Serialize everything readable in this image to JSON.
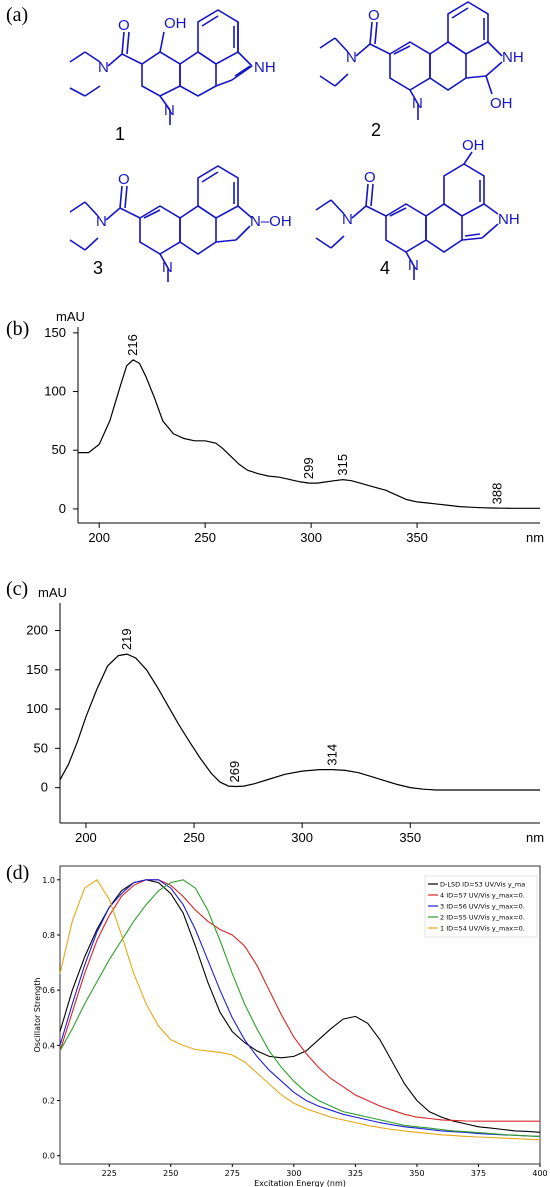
{
  "panels": {
    "a": "(a)",
    "b": "(b)",
    "c": "(c)",
    "d": "(d)"
  },
  "molecules": {
    "labels": [
      "1",
      "2",
      "3",
      "4"
    ],
    "atoms": {
      "oh": "OH",
      "nh": "NH",
      "n": "N",
      "noh": "N–OH",
      "o": "O"
    }
  },
  "chart_data": [
    {
      "panel": "(b)",
      "type": "line",
      "ylabel": "mAU",
      "xlabel": "nm",
      "xlim": [
        190,
        408
      ],
      "ylim": [
        -12,
        155
      ],
      "xticks": [
        200,
        250,
        300,
        350
      ],
      "yticks": [
        0,
        50,
        100,
        150
      ],
      "x": [
        190,
        195,
        200,
        205,
        210,
        213,
        216,
        219,
        222,
        226,
        230,
        235,
        240,
        245,
        250,
        255,
        258,
        262,
        266,
        270,
        275,
        280,
        285,
        290,
        295,
        299,
        303,
        307,
        311,
        315,
        319,
        323,
        327,
        331,
        335,
        340,
        345,
        350,
        355,
        360,
        365,
        370,
        375,
        380,
        385,
        390,
        395,
        400,
        405,
        408
      ],
      "y": [
        48,
        48,
        55,
        75,
        105,
        122,
        127,
        124,
        113,
        95,
        75,
        64,
        60,
        58,
        58,
        56,
        52,
        45,
        38,
        33,
        30,
        28,
        27,
        25,
        23,
        22,
        22,
        23,
        24,
        25,
        24,
        22,
        20,
        18,
        16,
        12,
        8,
        6,
        5,
        4,
        3,
        2,
        1.5,
        1,
        0.8,
        0.6,
        0.5,
        0.5,
        0.5,
        0.5
      ],
      "peak_labels": [
        {
          "x": 216,
          "y": 127,
          "text": "216"
        },
        {
          "x": 299,
          "y": 22,
          "text": "299"
        },
        {
          "x": 315,
          "y": 25,
          "text": "315"
        },
        {
          "x": 388,
          "y": 0.5,
          "text": "388"
        }
      ]
    },
    {
      "panel": "(c)",
      "type": "line",
      "ylabel": "mAU",
      "xlabel": "nm",
      "xlim": [
        188,
        410
      ],
      "ylim": [
        -45,
        235
      ],
      "xticks": [
        200,
        250,
        300,
        350
      ],
      "yticks": [
        0,
        50,
        100,
        150,
        200
      ],
      "x": [
        188,
        192,
        196,
        200,
        205,
        210,
        215,
        219,
        223,
        228,
        233,
        238,
        243,
        248,
        253,
        258,
        262,
        266,
        269,
        273,
        278,
        285,
        292,
        300,
        308,
        314,
        320,
        326,
        332,
        338,
        344,
        350,
        356,
        362,
        370,
        380,
        390,
        400,
        410
      ],
      "y": [
        10,
        30,
        58,
        90,
        125,
        155,
        168,
        170,
        165,
        150,
        128,
        104,
        80,
        58,
        37,
        18,
        7,
        2,
        1.5,
        2,
        5,
        11,
        17,
        21,
        23,
        23,
        22,
        19,
        14,
        9,
        4,
        0,
        -2,
        -3,
        -3,
        -3,
        -3,
        -3,
        -3
      ],
      "peak_labels": [
        {
          "x": 219,
          "y": 170,
          "text": "219"
        },
        {
          "x": 269,
          "y": 1.5,
          "text": "269"
        },
        {
          "x": 314,
          "y": 23,
          "text": "314"
        }
      ]
    },
    {
      "panel": "(d)",
      "type": "line",
      "xlabel": "Excitation Energy (nm)",
      "ylabel": "Oscillator Strength",
      "xlim": [
        205,
        400
      ],
      "ylim": [
        -0.03,
        1.05
      ],
      "xticks": [
        225,
        250,
        275,
        300,
        325,
        350,
        375,
        400
      ],
      "yticks": [
        0.0,
        0.2,
        0.4,
        0.6,
        0.8,
        1.0
      ],
      "legend_position": "top-right",
      "x": [
        205,
        210,
        215,
        220,
        225,
        230,
        235,
        240,
        245,
        250,
        255,
        260,
        265,
        270,
        275,
        280,
        285,
        290,
        295,
        300,
        305,
        310,
        315,
        320,
        325,
        330,
        335,
        340,
        345,
        350,
        355,
        360,
        365,
        370,
        375,
        380,
        385,
        390,
        395,
        400
      ],
      "series": [
        {
          "name": "D-LSD ID=53 UV/Vis y_ma",
          "color": "#000000",
          "values": [
            0.45,
            0.6,
            0.72,
            0.82,
            0.9,
            0.96,
            0.99,
            1.0,
            0.99,
            0.95,
            0.88,
            0.76,
            0.63,
            0.52,
            0.45,
            0.41,
            0.38,
            0.36,
            0.355,
            0.36,
            0.38,
            0.42,
            0.46,
            0.495,
            0.505,
            0.48,
            0.42,
            0.34,
            0.26,
            0.2,
            0.16,
            0.14,
            0.125,
            0.115,
            0.105,
            0.1,
            0.095,
            0.09,
            0.088,
            0.085
          ]
        },
        {
          "name": "4 ID=57 UV/Vis y_max=0.",
          "color": "#d62728",
          "values": [
            0.38,
            0.52,
            0.66,
            0.78,
            0.87,
            0.94,
            0.98,
            1.0,
            1.0,
            0.98,
            0.94,
            0.89,
            0.85,
            0.82,
            0.8,
            0.76,
            0.69,
            0.6,
            0.51,
            0.43,
            0.37,
            0.32,
            0.28,
            0.25,
            0.22,
            0.2,
            0.18,
            0.165,
            0.15,
            0.14,
            0.135,
            0.13,
            0.128,
            0.126,
            0.125,
            0.125,
            0.125,
            0.125,
            0.125,
            0.125
          ]
        },
        {
          "name": "3 ID=56 UV/Vis y_max=0.",
          "color": "#1f1fd6",
          "values": [
            0.4,
            0.55,
            0.69,
            0.81,
            0.9,
            0.95,
            0.99,
            1.0,
            1.0,
            0.97,
            0.91,
            0.82,
            0.71,
            0.6,
            0.5,
            0.42,
            0.36,
            0.31,
            0.27,
            0.23,
            0.2,
            0.18,
            0.165,
            0.15,
            0.14,
            0.13,
            0.12,
            0.112,
            0.105,
            0.1,
            0.095,
            0.09,
            0.087,
            0.084,
            0.08,
            0.078,
            0.076,
            0.074,
            0.072,
            0.07
          ]
        },
        {
          "name": "2 ID=55 UV/Vis y_max=0.",
          "color": "#2ca02c",
          "values": [
            0.38,
            0.46,
            0.55,
            0.63,
            0.71,
            0.78,
            0.85,
            0.91,
            0.96,
            0.99,
            1.0,
            0.97,
            0.89,
            0.78,
            0.66,
            0.55,
            0.46,
            0.38,
            0.32,
            0.27,
            0.23,
            0.2,
            0.18,
            0.16,
            0.15,
            0.14,
            0.13,
            0.12,
            0.11,
            0.105,
            0.1,
            0.095,
            0.09,
            0.087,
            0.084,
            0.08,
            0.077,
            0.074,
            0.072,
            0.07
          ]
        },
        {
          "name": "1 ID=54 UV/Vis y_max=0.",
          "color": "#e6a817",
          "values": [
            0.66,
            0.85,
            0.97,
            1.0,
            0.93,
            0.8,
            0.66,
            0.55,
            0.47,
            0.42,
            0.4,
            0.385,
            0.38,
            0.375,
            0.365,
            0.34,
            0.3,
            0.26,
            0.22,
            0.19,
            0.17,
            0.155,
            0.14,
            0.13,
            0.12,
            0.11,
            0.102,
            0.095,
            0.09,
            0.085,
            0.08,
            0.076,
            0.073,
            0.07,
            0.068,
            0.066,
            0.064,
            0.062,
            0.06,
            0.058
          ]
        }
      ]
    }
  ]
}
